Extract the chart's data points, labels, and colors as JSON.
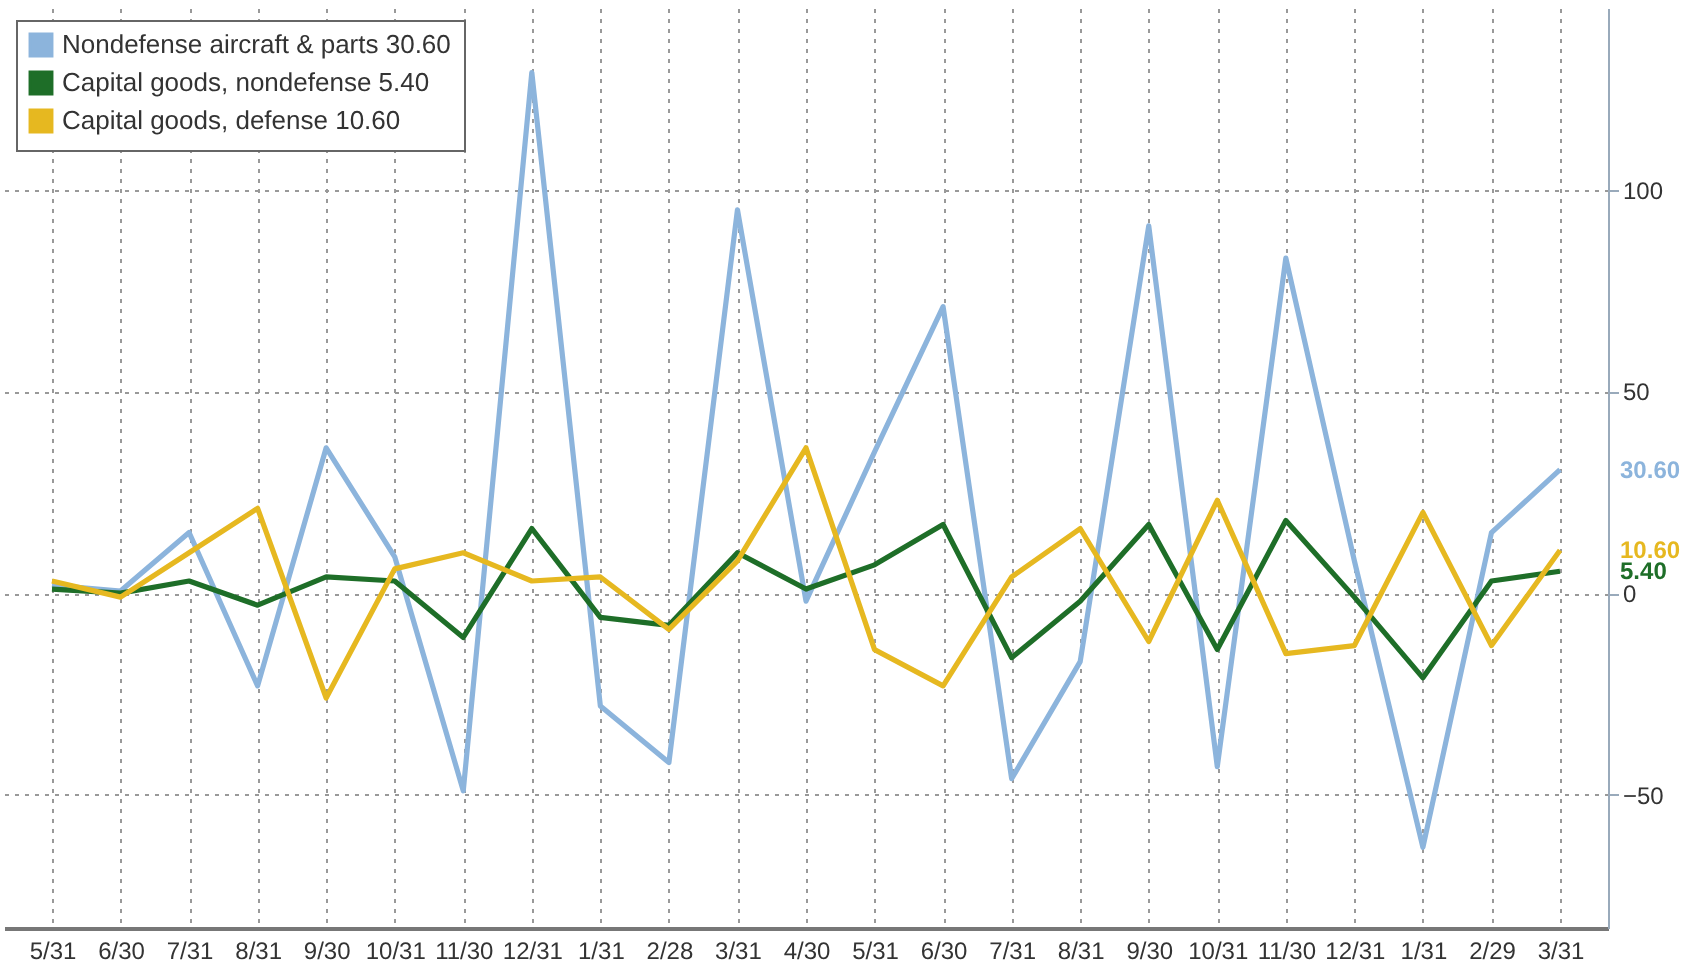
{
  "chart_data": {
    "type": "line",
    "categories": [
      "5/31",
      "6/30",
      "7/31",
      "8/31",
      "9/30",
      "10/31",
      "11/30",
      "12/31",
      "1/31",
      "2/28",
      "3/31",
      "4/30",
      "5/31",
      "6/30",
      "7/31",
      "8/31",
      "9/30",
      "10/31",
      "11/30",
      "12/31",
      "1/31",
      "2/29",
      "3/31"
    ],
    "series": [
      {
        "name": "Nondefense aircraft & parts 30.60",
        "color": "#8cb4dc",
        "values": [
          2,
          0.5,
          15,
          -23,
          36,
          9,
          -49,
          129,
          -28,
          -42,
          95,
          -2,
          35,
          71,
          -46,
          -17,
          91,
          -43,
          83,
          8,
          -63,
          15,
          30.6
        ]
      },
      {
        "name": "Capital goods, nondefense 5.40",
        "color": "#1e6e28",
        "values": [
          1,
          0,
          3,
          -3,
          4,
          3,
          -11,
          16,
          -6,
          -8,
          10,
          1,
          7,
          17,
          -16,
          -2,
          17,
          -14,
          18,
          -1,
          -21,
          3,
          5.4
        ]
      },
      {
        "name": "Capital goods, defense 10.60",
        "color": "#e6b820",
        "values": [
          3,
          -1,
          10,
          21,
          -26,
          6,
          10,
          3,
          4,
          -9,
          8,
          36,
          -14,
          -23,
          4,
          16,
          -12,
          23,
          -15,
          -13,
          20,
          -13,
          10.6
        ]
      }
    ],
    "annotations": [
      "30.60",
      "5.40",
      "10.60"
    ],
    "ylim": [
      -83,
      145
    ],
    "yticks": [
      -50,
      0,
      50,
      100
    ],
    "grid": true,
    "legend": "top left",
    "line_style": "solid"
  }
}
